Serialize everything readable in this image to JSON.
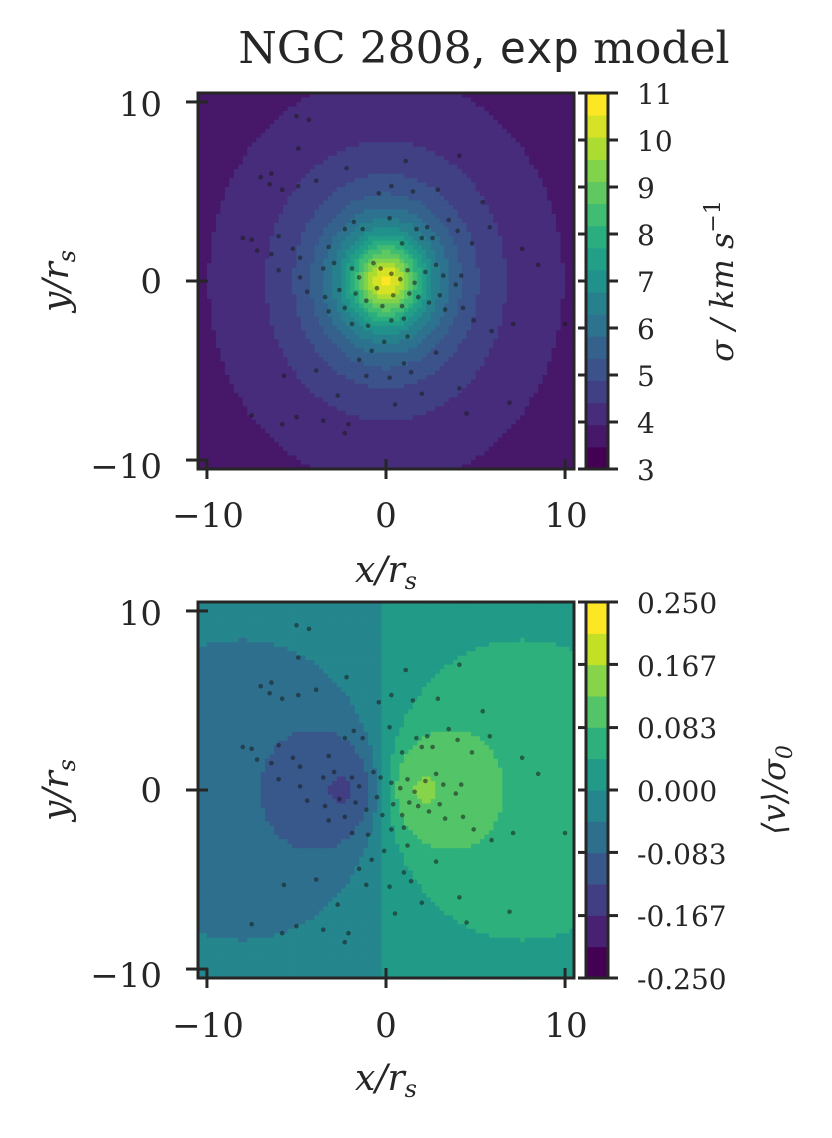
{
  "figure": {
    "title_main": "NGC 2808,",
    "title_code": "exp",
    "title_end": "model"
  },
  "chart_data": [
    {
      "type": "heatmap",
      "title": "NGC 2808, exp model",
      "xlabel": "x/r_s",
      "ylabel": "y/r_s",
      "xlim": [
        -10.5,
        10.5
      ],
      "ylim": [
        -10.5,
        10.5
      ],
      "x_ticks": [
        -10,
        0,
        10
      ],
      "y_ticks": [
        -10,
        0,
        10
      ],
      "x_tick_labels": [
        "−10",
        "0",
        "10"
      ],
      "y_tick_labels": [
        "−10",
        "0",
        "10"
      ],
      "xlabel_display": "x/r",
      "ylabel_display": "y/r",
      "label_sub": "s",
      "colorbar": {
        "label": "σ / km s^-1",
        "label_display": "σ / km s",
        "label_sup": "−1",
        "range": [
          3,
          11
        ],
        "ticks": [
          3,
          4,
          5,
          6,
          7,
          8,
          9,
          10,
          11
        ],
        "tick_labels": [
          "3",
          "4",
          "5",
          "6",
          "7",
          "8",
          "9",
          "10",
          "11"
        ],
        "colormap": "viridis",
        "levels": 17
      },
      "field": "velocity dispersion, centrally peaked (~10.5 at center, ~3.3 at corners)",
      "grid": false
    },
    {
      "type": "heatmap",
      "xlabel": "x/r_s",
      "ylabel": "y/r_s",
      "xlim": [
        -10.5,
        10.5
      ],
      "ylim": [
        -10.5,
        10.5
      ],
      "x_ticks": [
        -10,
        0,
        10
      ],
      "y_ticks": [
        -10,
        0,
        10
      ],
      "x_tick_labels": [
        "−10",
        "0",
        "10"
      ],
      "y_tick_labels": [
        "−10",
        "0",
        "10"
      ],
      "xlabel_display": "x/r",
      "ylabel_display": "y/r",
      "label_sub": "s",
      "colorbar": {
        "label": "⟨v⟩/σ_0",
        "label_display": "⟨v⟩/σ",
        "label_sub": "0",
        "range": [
          -0.25,
          0.25
        ],
        "ticks": [
          -0.25,
          -0.167,
          -0.083,
          0.0,
          0.083,
          0.167,
          0.25
        ],
        "tick_labels": [
          "-0.250",
          "-0.167",
          "-0.083",
          "0.000",
          "0.083",
          "0.167",
          "0.250"
        ],
        "colormap": "viridis",
        "levels": 12
      },
      "field": "mean line-of-sight velocity, dipole (rotation): negative for x<0 (min ~-0.23 near x=-2), positive for x>0 (max ~+0.19 near x=+1.5)",
      "grid": false
    }
  ],
  "stars": [
    [
      -5.0,
      9.2
    ],
    [
      -4.9,
      7.4
    ],
    [
      -4.3,
      9.0
    ],
    [
      -7.0,
      5.8
    ],
    [
      -6.5,
      5.4
    ],
    [
      -6.4,
      6.0
    ],
    [
      -5.8,
      5.1
    ],
    [
      -4.9,
      5.3
    ],
    [
      -3.9,
      5.6
    ],
    [
      -2.2,
      6.3
    ],
    [
      1.1,
      6.7
    ],
    [
      4.1,
      7.0
    ],
    [
      1.5,
      5.0
    ],
    [
      -0.4,
      4.9
    ],
    [
      0.3,
      5.3
    ],
    [
      2.9,
      5.1
    ],
    [
      5.4,
      4.4
    ],
    [
      5.8,
      3.0
    ],
    [
      -8.0,
      2.4
    ],
    [
      -7.5,
      2.3
    ],
    [
      -7.2,
      1.7
    ],
    [
      -6.0,
      2.5
    ],
    [
      -6.4,
      1.5
    ],
    [
      -5.2,
      1.8
    ],
    [
      -4.8,
      1.3
    ],
    [
      -3.2,
      1.9
    ],
    [
      -2.3,
      2.9
    ],
    [
      -1.8,
      3.3
    ],
    [
      -1.3,
      2.9
    ],
    [
      0.2,
      3.5
    ],
    [
      0.9,
      2.1
    ],
    [
      1.7,
      2.9
    ],
    [
      2.0,
      2.4
    ],
    [
      2.3,
      3.0
    ],
    [
      2.6,
      2.4
    ],
    [
      3.5,
      3.4
    ],
    [
      4.0,
      2.8
    ],
    [
      4.8,
      2.1
    ],
    [
      7.6,
      1.8
    ],
    [
      8.5,
      0.9
    ],
    [
      -6.0,
      0.6
    ],
    [
      -4.8,
      0.2
    ],
    [
      -3.5,
      0.7
    ],
    [
      -2.9,
      1.0
    ],
    [
      -1.9,
      0.7
    ],
    [
      -1.5,
      0.2
    ],
    [
      -0.7,
      1.0
    ],
    [
      -0.3,
      0.7
    ],
    [
      0.3,
      0.4
    ],
    [
      0.8,
      0.1
    ],
    [
      1.2,
      0.6
    ],
    [
      1.6,
      -0.1
    ],
    [
      2.2,
      0.5
    ],
    [
      2.8,
      0.9
    ],
    [
      3.2,
      0.3
    ],
    [
      3.9,
      -0.2
    ],
    [
      4.2,
      0.3
    ],
    [
      -4.4,
      -0.6
    ],
    [
      -3.4,
      -0.9
    ],
    [
      -2.6,
      -0.5
    ],
    [
      -1.7,
      -0.7
    ],
    [
      -1.1,
      -1.1
    ],
    [
      -0.5,
      -0.4
    ],
    [
      -0.2,
      -1.4
    ],
    [
      0.4,
      -0.8
    ],
    [
      0.9,
      -1.4
    ],
    [
      1.3,
      -0.7
    ],
    [
      1.8,
      -0.9
    ],
    [
      2.4,
      -1.2
    ],
    [
      3.0,
      -0.8
    ],
    [
      3.3,
      -1.6
    ],
    [
      4.3,
      -1.5
    ],
    [
      -3.2,
      -1.7
    ],
    [
      -2.3,
      -1.5
    ],
    [
      -1.9,
      -2.4
    ],
    [
      -1.0,
      -2.5
    ],
    [
      0.3,
      -2.2
    ],
    [
      1.0,
      -2.1
    ],
    [
      1.2,
      -3.1
    ],
    [
      -0.1,
      -3.4
    ],
    [
      -0.8,
      -3.9
    ],
    [
      -1.5,
      -4.4
    ],
    [
      1.0,
      -4.6
    ],
    [
      2.8,
      -4.0
    ],
    [
      4.9,
      -2.2
    ],
    [
      5.9,
      -2.8
    ],
    [
      7.1,
      -2.4
    ],
    [
      10.0,
      -2.4
    ],
    [
      -5.7,
      -5.3
    ],
    [
      -3.9,
      -5.0
    ],
    [
      -2.7,
      -6.4
    ],
    [
      -1.1,
      -5.3
    ],
    [
      0.2,
      -5.4
    ],
    [
      1.4,
      -5.1
    ],
    [
      2.0,
      -6.3
    ],
    [
      4.1,
      -6.0
    ],
    [
      6.9,
      -6.8
    ],
    [
      -7.5,
      -7.5
    ],
    [
      -5.0,
      -7.6
    ],
    [
      -3.5,
      -7.8
    ],
    [
      -2.1,
      -8.0
    ],
    [
      -2.3,
      -8.5
    ],
    [
      0.5,
      -6.9
    ],
    [
      4.5,
      -7.4
    ],
    [
      -5.8,
      -8.0
    ]
  ]
}
